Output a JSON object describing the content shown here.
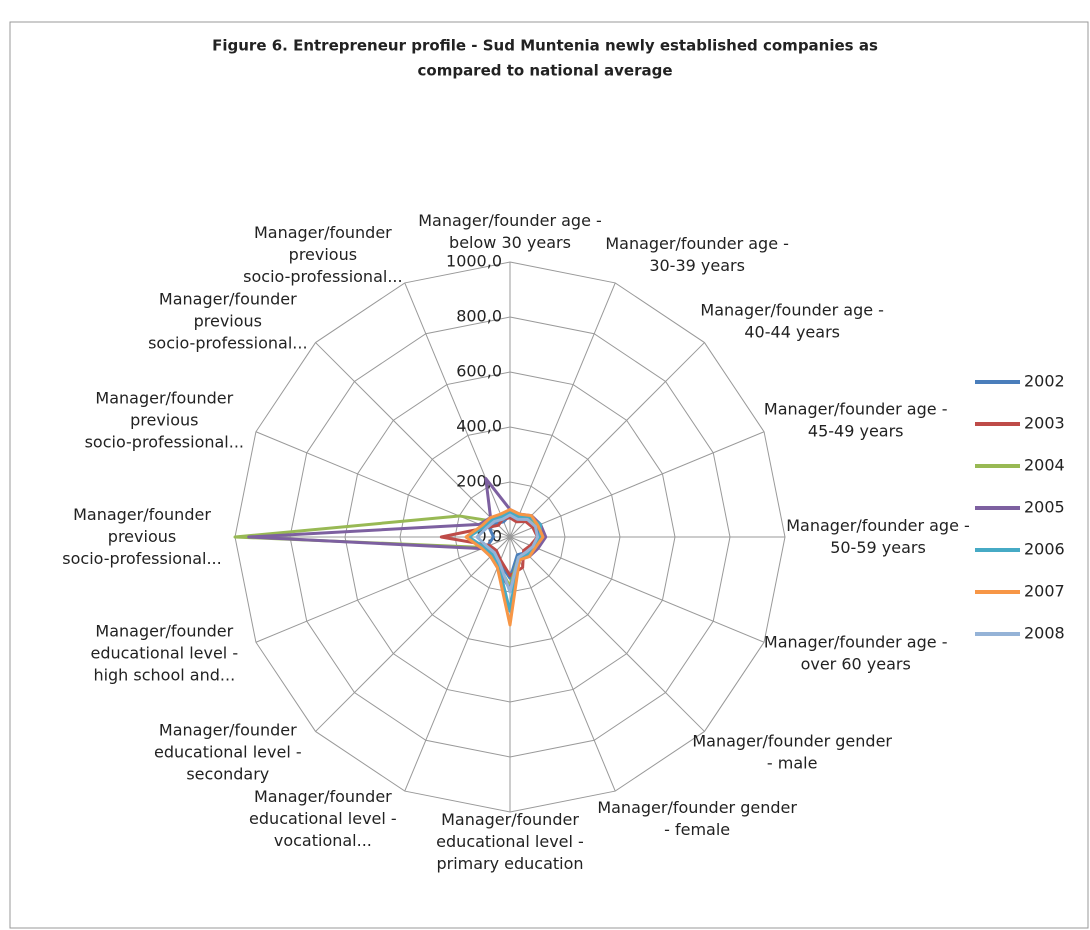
{
  "chart_data": {
    "type": "radar",
    "title": "Figure 6. Entrepreneur profile - Sud Muntenia newly established companies as compared to national average",
    "categories": [
      "Manager/founder age - below 30 years",
      "Manager/founder age - 30-39 years",
      "Manager/founder age - 40-44 years",
      "Manager/founder age - 45-49 years",
      "Manager/founder age - 50-59 years",
      "Manager/founder age - over 60 years",
      "Manager/founder gender - male",
      "Manager/founder gender - female",
      "Manager/founder educational level - primary education",
      "Manager/founder educational level - vocational...",
      "Manager/founder educational level - secondary",
      "Manager/founder educational level - high school and...",
      "Manager/founder previous socio-professional...",
      "Manager/founder previous socio-professional...",
      "Manager/founder previous socio-professional...",
      "Manager/founder previous socio-professional..."
    ],
    "series": [
      {
        "name": "2002",
        "color": "#4a7ebb",
        "values": [
          80,
          70,
          90,
          100,
          110,
          90,
          80,
          70,
          150,
          100,
          80,
          90,
          60,
          80,
          70,
          60
        ]
      },
      {
        "name": "2003",
        "color": "#be4b48",
        "values": [
          70,
          60,
          80,
          90,
          100,
          80,
          70,
          120,
          140,
          90,
          70,
          80,
          250,
          90,
          60,
          70
        ]
      },
      {
        "name": "2004",
        "color": "#98b954",
        "values": [
          90,
          80,
          100,
          110,
          120,
          100,
          90,
          80,
          180,
          110,
          90,
          100,
          1000,
          200,
          80,
          80
        ]
      },
      {
        "name": "2005",
        "color": "#7d60a0",
        "values": [
          100,
          90,
          110,
          120,
          130,
          110,
          100,
          90,
          190,
          120,
          100,
          110,
          950,
          120,
          100,
          230
        ]
      },
      {
        "name": "2006",
        "color": "#46aac5",
        "values": [
          90,
          80,
          100,
          120,
          110,
          100,
          90,
          80,
          270,
          110,
          90,
          100,
          150,
          100,
          90,
          80
        ]
      },
      {
        "name": "2007",
        "color": "#f79646",
        "values": [
          100,
          90,
          110,
          110,
          120,
          100,
          100,
          90,
          320,
          120,
          100,
          110,
          160,
          110,
          100,
          90
        ]
      },
      {
        "name": "2008",
        "color": "#95b3d7",
        "values": [
          80,
          70,
          90,
          100,
          100,
          90,
          80,
          80,
          200,
          100,
          80,
          90,
          120,
          90,
          80,
          70
        ]
      }
    ],
    "rlim": [
      0,
      1000
    ],
    "rticks": [
      {
        "value": 0,
        "label": "0,0"
      },
      {
        "value": 200,
        "label": "200,0"
      },
      {
        "value": 400,
        "label": "400,0"
      },
      {
        "value": 600,
        "label": "600,0"
      },
      {
        "value": 800,
        "label": "800,0"
      },
      {
        "value": 1000,
        "label": "1000,0"
      }
    ],
    "grid": true,
    "legend": "right"
  }
}
